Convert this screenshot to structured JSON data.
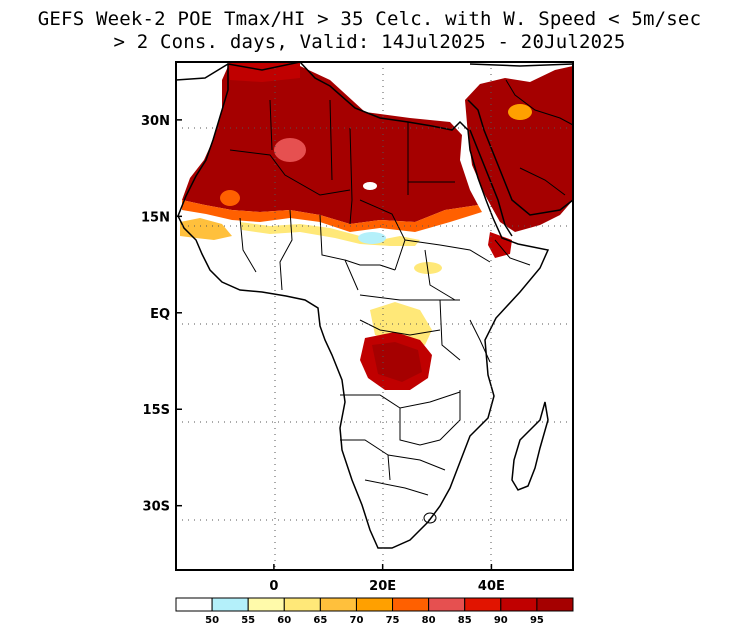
{
  "title": {
    "line1": "GEFS Week-2 POE Tmax/HI > 35 Celc. with W. Speed < 5m/sec",
    "line2": "> 2 Cons. days, Valid: 14Jul2025 - 20Jul2025"
  },
  "map": {
    "region": "Africa",
    "lon_range": [
      -18,
      55
    ],
    "lat_range": [
      -40,
      39
    ],
    "lat_ticks": [
      {
        "value": 30,
        "label": "30N"
      },
      {
        "value": 15,
        "label": "15N"
      },
      {
        "value": 0,
        "label": "EQ"
      },
      {
        "value": -15,
        "label": "15S"
      },
      {
        "value": -30,
        "label": "30S"
      }
    ],
    "lon_ticks": [
      {
        "value": 0,
        "label": "0"
      },
      {
        "value": 20,
        "label": "20E"
      },
      {
        "value": 40,
        "label": "40E"
      }
    ],
    "grid": "dotted"
  },
  "legend": {
    "colors": [
      "#ffffff",
      "#b4f0fa",
      "#fffaaa",
      "#ffe878",
      "#ffc03c",
      "#ffa000",
      "#ff6000",
      "#e65050",
      "#e11400",
      "#c00000",
      "#a50000"
    ],
    "labels": [
      "50",
      "55",
      "60",
      "65",
      "70",
      "75",
      "80",
      "85",
      "90",
      "95"
    ]
  },
  "chart_data": {
    "type": "heatmap",
    "variable": "Probability of exceedance (%)",
    "levels": [
      50,
      55,
      60,
      65,
      70,
      75,
      80,
      85,
      90,
      95
    ],
    "regions": [
      {
        "area": "Sahara / Sahel (~15N-35N)",
        "prob": ">95"
      },
      {
        "area": "Arabian Peninsula",
        "prob": ">95"
      },
      {
        "area": "Central Africa (~5S-10S, 15E-25E)",
        "prob": "90-95"
      },
      {
        "area": "Gulf of Aden / Horn coast",
        "prob": "90-95"
      }
    ]
  }
}
